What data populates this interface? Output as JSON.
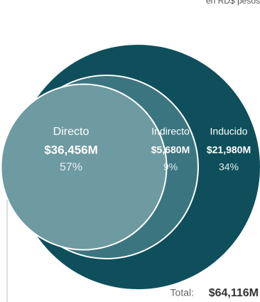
{
  "chart_data": {
    "type": "nested-circles",
    "subtitle": "en RD$ pesos",
    "categories": [
      "Directo",
      "Indirecto",
      "Inducido"
    ],
    "values": [
      36456,
      5680,
      21980
    ],
    "value_labels": [
      "$36,456M",
      "$5,680M",
      "$21,980M"
    ],
    "percent_values": [
      57,
      9,
      34
    ],
    "percent_labels": [
      "57%",
      "9%",
      "34%"
    ],
    "colors": [
      "#6e9aa2",
      "#3b7580",
      "#0e4f5b"
    ],
    "total_label": "Total:",
    "total": 64116,
    "total_value_label": "$64,116M"
  }
}
